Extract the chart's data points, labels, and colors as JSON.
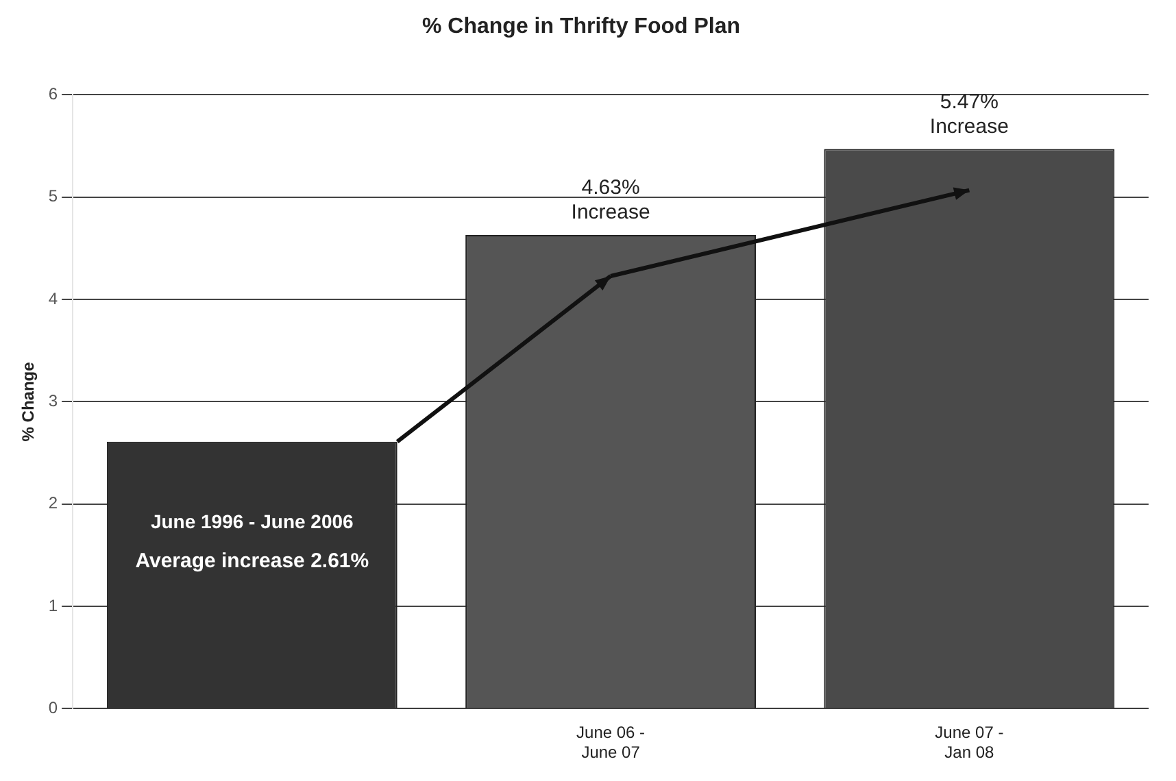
{
  "chart_data": {
    "type": "bar",
    "title": "% Change in Thrifty Food Plan",
    "ylabel": "% Change",
    "categories": [
      null,
      "June 06 - June 07",
      "June 07 - Jan 08"
    ],
    "values": [
      2.61,
      4.63,
      5.47
    ],
    "colors": [
      "#333333",
      "#555555",
      "#4a4a4a"
    ],
    "ylim": [
      0,
      6
    ],
    "yticks": [
      0,
      1,
      2,
      3,
      4,
      5,
      6
    ],
    "grid": "y",
    "legend": false,
    "annotations": [
      "June 1996 - June 2006",
      "Average increase 2.61%",
      {
        "text": "4.63% Increase",
        "x": "June 06 - June 07",
        "y": 4.63
      },
      {
        "text": "5.47% Increase",
        "x": "June 07 - Jan 08",
        "y": 5.47
      }
    ]
  }
}
